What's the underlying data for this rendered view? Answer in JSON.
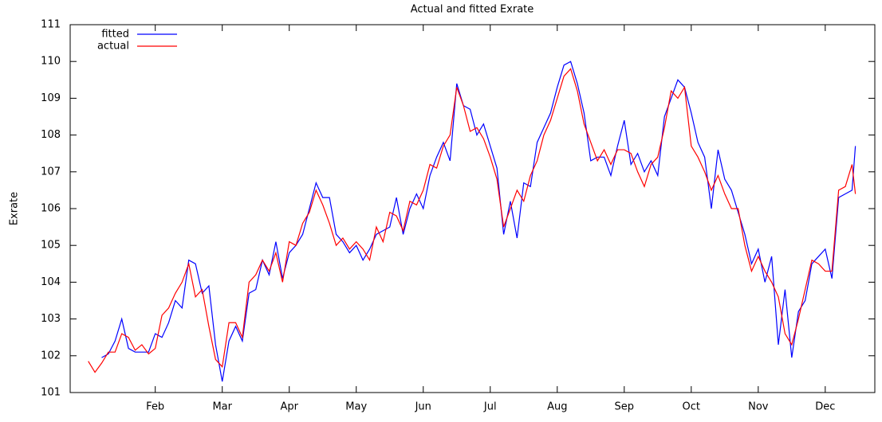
{
  "chart_data": {
    "type": "line",
    "title": "Actual and fitted Exrate",
    "y_label": "Exrate",
    "x": [
      1.0,
      1.1,
      1.2,
      1.3,
      1.4,
      1.5,
      1.6,
      1.7,
      1.8,
      1.9,
      2.0,
      2.1,
      2.2,
      2.3,
      2.4,
      2.5,
      2.6,
      2.7,
      2.8,
      2.9,
      3.0,
      3.1,
      3.2,
      3.3,
      3.4,
      3.5,
      3.6,
      3.7,
      3.8,
      3.9,
      4.0,
      4.1,
      4.2,
      4.3,
      4.4,
      4.5,
      4.6,
      4.7,
      4.8,
      4.9,
      5.0,
      5.1,
      5.2,
      5.3,
      5.4,
      5.5,
      5.6,
      5.7,
      5.8,
      5.9,
      6.0,
      6.1,
      6.2,
      6.3,
      6.4,
      6.5,
      6.6,
      6.7,
      6.8,
      6.9,
      7.0,
      7.1,
      7.2,
      7.3,
      7.4,
      7.5,
      7.6,
      7.7,
      7.8,
      7.9,
      8.0,
      8.1,
      8.2,
      8.3,
      8.4,
      8.5,
      8.6,
      8.7,
      8.8,
      8.9,
      9.0,
      9.1,
      9.2,
      9.3,
      9.4,
      9.5,
      9.6,
      9.7,
      9.8,
      9.9,
      10.0,
      10.1,
      10.2,
      10.3,
      10.4,
      10.5,
      10.6,
      10.7,
      10.8,
      10.9,
      11.0,
      11.1,
      11.2,
      11.3,
      11.4,
      11.5,
      11.6,
      11.7,
      11.8,
      11.9,
      12.0,
      12.1,
      12.2,
      12.3,
      12.4,
      12.45
    ],
    "series": [
      {
        "name": "fitted",
        "color": "#0000ff",
        "values": [
          null,
          null,
          101.95,
          102.05,
          102.4,
          103.0,
          102.2,
          102.1,
          102.1,
          102.1,
          102.6,
          102.5,
          102.9,
          103.5,
          103.3,
          104.6,
          104.5,
          103.7,
          103.9,
          102.3,
          101.3,
          102.4,
          102.8,
          102.4,
          103.7,
          103.8,
          104.6,
          104.2,
          105.1,
          104.1,
          104.8,
          105.0,
          105.3,
          106.0,
          106.7,
          106.3,
          106.3,
          105.3,
          105.1,
          104.8,
          105.0,
          104.6,
          104.9,
          105.3,
          105.4,
          105.5,
          106.3,
          105.3,
          106.0,
          106.4,
          106.0,
          106.9,
          107.4,
          107.8,
          107.3,
          109.4,
          108.8,
          108.7,
          108.0,
          108.3,
          107.7,
          107.1,
          105.3,
          106.2,
          105.2,
          106.7,
          106.6,
          107.8,
          108.2,
          108.6,
          109.3,
          109.9,
          110.0,
          109.4,
          108.6,
          107.3,
          107.4,
          107.4,
          106.9,
          107.7,
          108.4,
          107.2,
          107.5,
          107.0,
          107.3,
          106.9,
          108.5,
          109.0,
          109.5,
          109.3,
          108.6,
          107.8,
          107.4,
          106.0,
          107.6,
          106.8,
          106.5,
          105.9,
          105.3,
          104.5,
          104.9,
          104.0,
          104.7,
          102.3,
          103.8,
          101.95,
          103.2,
          103.5,
          104.5,
          104.7,
          104.9,
          104.1,
          106.3,
          106.4,
          106.5,
          107.7
        ]
      },
      {
        "name": "actual",
        "color": "#ff0000",
        "values": [
          101.85,
          101.55,
          101.8,
          102.1,
          102.1,
          102.6,
          102.5,
          102.15,
          102.3,
          102.05,
          102.2,
          103.1,
          103.3,
          103.7,
          104.0,
          104.5,
          103.6,
          103.8,
          102.8,
          101.9,
          101.7,
          102.9,
          102.9,
          102.5,
          104.0,
          104.2,
          104.6,
          104.3,
          104.8,
          104.0,
          105.1,
          105.0,
          105.6,
          105.9,
          106.5,
          106.1,
          105.6,
          105.0,
          105.2,
          104.9,
          105.1,
          104.9,
          104.6,
          105.5,
          105.1,
          105.9,
          105.8,
          105.4,
          106.2,
          106.1,
          106.5,
          107.2,
          107.1,
          107.7,
          108.0,
          109.3,
          108.8,
          108.1,
          108.2,
          107.9,
          107.4,
          106.8,
          105.5,
          106.0,
          106.5,
          106.2,
          106.9,
          107.3,
          108.0,
          108.4,
          109.0,
          109.6,
          109.8,
          109.2,
          108.3,
          107.8,
          107.3,
          107.6,
          107.2,
          107.6,
          107.6,
          107.5,
          107.0,
          106.6,
          107.2,
          107.4,
          108.2,
          109.2,
          109.0,
          109.3,
          107.7,
          107.4,
          107.0,
          106.5,
          106.9,
          106.4,
          106.0,
          106.0,
          105.0,
          104.3,
          104.7,
          104.3,
          104.0,
          103.6,
          102.6,
          102.3,
          103.0,
          103.8,
          104.6,
          104.5,
          104.3,
          104.3,
          106.5,
          106.6,
          107.2,
          106.4
        ]
      }
    ],
    "xlim": [
      0.73,
      12.74
    ],
    "xticks": [
      {
        "value": 2,
        "label": "Feb"
      },
      {
        "value": 3,
        "label": "Mar"
      },
      {
        "value": 4,
        "label": "Apr"
      },
      {
        "value": 5,
        "label": "May"
      },
      {
        "value": 6,
        "label": "Jun"
      },
      {
        "value": 7,
        "label": "Jul"
      },
      {
        "value": 8,
        "label": "Aug"
      },
      {
        "value": 9,
        "label": "Sep"
      },
      {
        "value": 10,
        "label": "Oct"
      },
      {
        "value": 11,
        "label": "Nov"
      },
      {
        "value": 12,
        "label": "Dec"
      }
    ],
    "ylim": [
      101,
      111
    ],
    "yticks": [
      101,
      102,
      103,
      104,
      105,
      106,
      107,
      108,
      109,
      110,
      111
    ],
    "grid": false,
    "legend": "top-left"
  }
}
